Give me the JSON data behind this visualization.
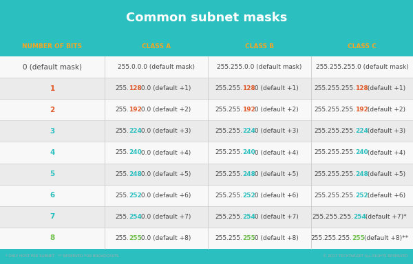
{
  "title": "Common subnet masks",
  "title_bg": "#2bbfbf",
  "title_color": "#ffffff",
  "header_bg": "#2bbfbf",
  "header_color": "#f5a623",
  "headers": [
    "NUMBER OF BITS",
    "CLASS A",
    "CLASS B",
    "CLASS C"
  ],
  "row_bg_odd": "#ebebeb",
  "row_bg_even": "#f8f8f8",
  "table_bg": "#f8f8f8",
  "normal_color": "#444444",
  "rows": [
    {
      "bits": "0 (default mask)",
      "bits_color": "#444444",
      "bits_bold": false,
      "class_a_pre": "255.0.0.0",
      "class_a_hi": "",
      "class_a_suf": " (default mask)",
      "class_b_pre": "255.255.0.0",
      "class_b_hi": "",
      "class_b_suf": " (default mask)",
      "class_c_pre": "255.255.255.0",
      "class_c_hi": "",
      "class_c_suf": " (default mask)",
      "hi_color": "#444444"
    },
    {
      "bits": "1",
      "bits_color": "#e05a2b",
      "bits_bold": true,
      "class_a_pre": "255.",
      "class_a_hi": "128",
      "class_a_suf": ".0.0 (default +1)",
      "class_b_pre": "255.255.",
      "class_b_hi": "128",
      "class_b_suf": ".0 (default +1)",
      "class_c_pre": "255.255.255.",
      "class_c_hi": "128",
      "class_c_suf": " (default +1)",
      "hi_color": "#e05a2b"
    },
    {
      "bits": "2",
      "bits_color": "#e05a2b",
      "bits_bold": true,
      "class_a_pre": "255.",
      "class_a_hi": "192",
      "class_a_suf": ".0.0 (default +2)",
      "class_b_pre": "255.255.",
      "class_b_hi": "192",
      "class_b_suf": ".0 (default +2)",
      "class_c_pre": "255.255.255.",
      "class_c_hi": "192",
      "class_c_suf": " (default +2)",
      "hi_color": "#e05a2b"
    },
    {
      "bits": "3",
      "bits_color": "#2bbfbf",
      "bits_bold": true,
      "class_a_pre": "255.",
      "class_a_hi": "224",
      "class_a_suf": ".0.0 (default +3)",
      "class_b_pre": "255.255.",
      "class_b_hi": "224",
      "class_b_suf": ".0 (default +3)",
      "class_c_pre": "255.255.255.",
      "class_c_hi": "224",
      "class_c_suf": " (default +3)",
      "hi_color": "#2bbfbf"
    },
    {
      "bits": "4",
      "bits_color": "#2bbfbf",
      "bits_bold": true,
      "class_a_pre": "255.",
      "class_a_hi": "240",
      "class_a_suf": ".0.0 (default +4)",
      "class_b_pre": "255.255.",
      "class_b_hi": "240",
      "class_b_suf": ".0 (default +4)",
      "class_c_pre": "255.255.255.",
      "class_c_hi": "240",
      "class_c_suf": " (default +4)",
      "hi_color": "#2bbfbf"
    },
    {
      "bits": "5",
      "bits_color": "#2bbfbf",
      "bits_bold": true,
      "class_a_pre": "255.",
      "class_a_hi": "248",
      "class_a_suf": ".0.0 (default +5)",
      "class_b_pre": "255.255.",
      "class_b_hi": "248",
      "class_b_suf": ".0 (default +5)",
      "class_c_pre": "255.255.255.",
      "class_c_hi": "248",
      "class_c_suf": " (default +5)",
      "hi_color": "#2bbfbf"
    },
    {
      "bits": "6",
      "bits_color": "#2bbfbf",
      "bits_bold": true,
      "class_a_pre": "255.",
      "class_a_hi": "252",
      "class_a_suf": ".0.0 (default +6)",
      "class_b_pre": "255.255.",
      "class_b_hi": "252",
      "class_b_suf": ".0 (default +6)",
      "class_c_pre": "255.255.255.",
      "class_c_hi": "252",
      "class_c_suf": " (default +6)",
      "hi_color": "#2bbfbf"
    },
    {
      "bits": "7",
      "bits_color": "#2bbfbf",
      "bits_bold": true,
      "class_a_pre": "255.",
      "class_a_hi": "254",
      "class_a_suf": ".0.0 (default +7)",
      "class_b_pre": "255.255.",
      "class_b_hi": "254",
      "class_b_suf": ".0 (default +7)",
      "class_c_pre": "255.255.255.",
      "class_c_hi": "254",
      "class_c_suf": " (default +7)*",
      "hi_color": "#2bbfbf"
    },
    {
      "bits": "8",
      "bits_color": "#6cc04a",
      "bits_bold": true,
      "class_a_pre": "255.",
      "class_a_hi": "255",
      "class_a_suf": ".0.0 (default +8)",
      "class_b_pre": "255.255.",
      "class_b_hi": "255",
      "class_b_suf": ".0 (default +8)",
      "class_c_pre": "255.255.255.",
      "class_c_hi": "255",
      "class_c_suf": " (default +8)**",
      "hi_color": "#6cc04a"
    }
  ],
  "footer_left": "* ONLY HOST PER SUBNET   ** RESERVED FOR BROADCASTS",
  "footer_right": "© 2017 TECHTARGET ALL RIGHTS RESERVED"
}
